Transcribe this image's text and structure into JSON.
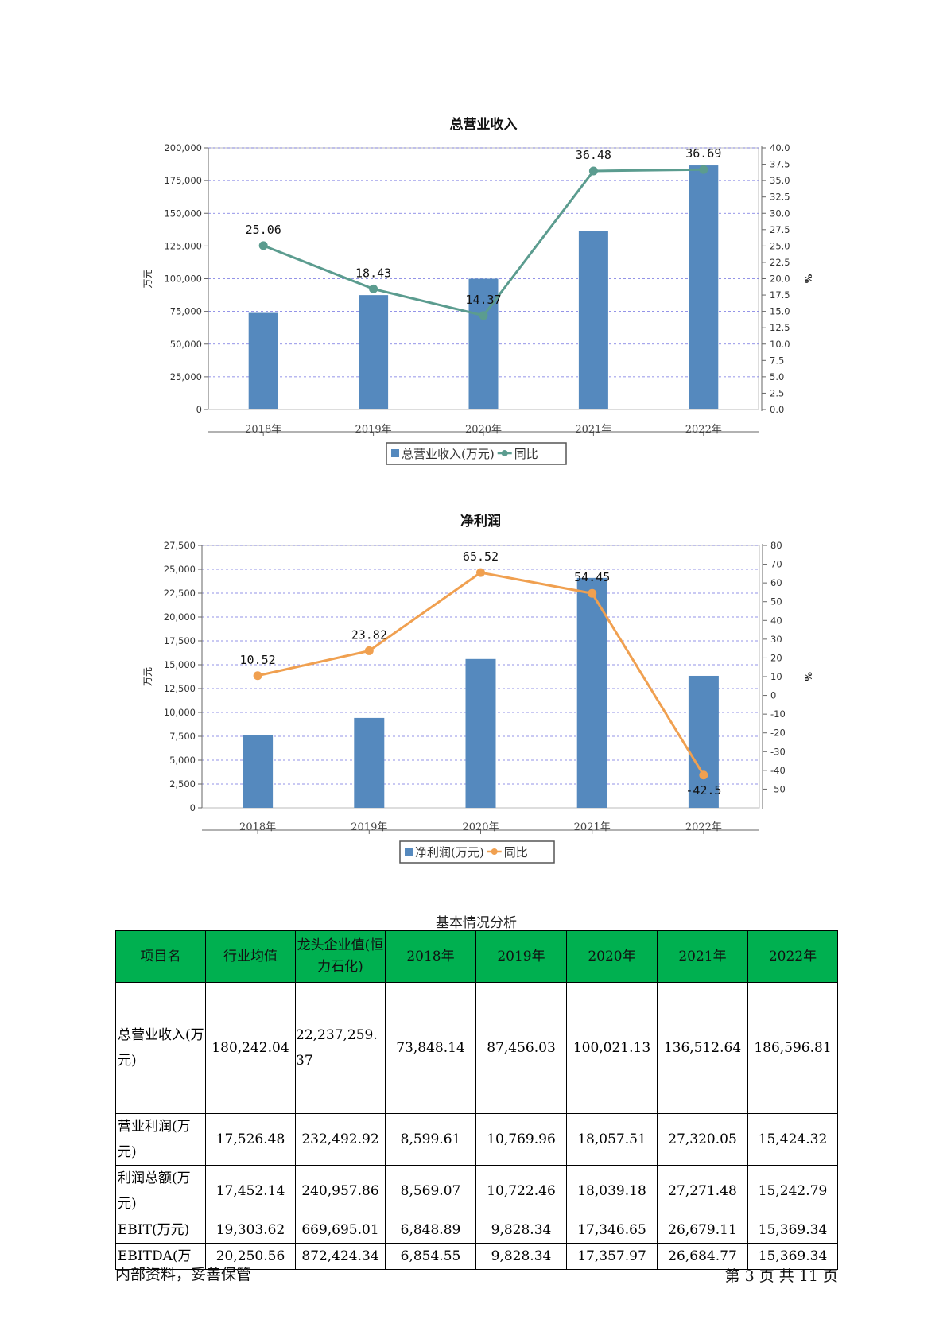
{
  "chart_data": [
    {
      "type": "bar",
      "title": "总营业收入",
      "categories": [
        "2018年",
        "2019年",
        "2020年",
        "2021年",
        "2022年"
      ],
      "ylabel": "万元",
      "y2label": "%",
      "ylim": [
        0,
        200000
      ],
      "y2lim": [
        0,
        40
      ],
      "yticks": [
        "0",
        "25,000",
        "50,000",
        "75,000",
        "100,000",
        "125,000",
        "150,000",
        "175,000",
        "200,000"
      ],
      "y2ticks": [
        "0.0",
        "2.5",
        "5.0",
        "7.5",
        "10.0",
        "12.5",
        "15.0",
        "17.5",
        "20.0",
        "22.5",
        "25.0",
        "27.5",
        "30.0",
        "32.5",
        "35.0",
        "37.5",
        "40.0"
      ],
      "series": [
        {
          "name": "总营业收入(万元)",
          "type": "bar",
          "values": [
            73848.14,
            87456.03,
            100021.13,
            136512.64,
            186596.81
          ],
          "color": "#5589be"
        },
        {
          "name": "同比",
          "type": "line",
          "axis": "right",
          "values": [
            25.06,
            18.43,
            14.37,
            36.48,
            36.69
          ],
          "labels": [
            "25.06",
            "18.43",
            "14.37",
            "36.48",
            "36.69"
          ],
          "color": "#5b9c8f"
        }
      ],
      "legend": "bottom",
      "grid": true
    },
    {
      "type": "bar",
      "title": "净利润",
      "categories": [
        "2018年",
        "2019年",
        "2020年",
        "2021年",
        "2022年"
      ],
      "ylabel": "万元",
      "y2label": "%",
      "ylim": [
        0,
        27500
      ],
      "y2lim": [
        -60,
        80
      ],
      "yticks": [
        "0",
        "2,500",
        "5,000",
        "7,500",
        "10,000",
        "12,500",
        "15,000",
        "17,500",
        "20,000",
        "22,500",
        "25,000",
        "27,500"
      ],
      "y2ticks": [
        "-50",
        "-40",
        "-30",
        "-20",
        "-10",
        "0",
        "10",
        "20",
        "30",
        "40",
        "50",
        "60",
        "70",
        "80"
      ],
      "series": [
        {
          "name": "净利润(万元)",
          "type": "bar",
          "values": [
            7612,
            9424,
            15600,
            24095,
            13835
          ],
          "color": "#5589be"
        },
        {
          "name": "同比",
          "type": "line",
          "axis": "right",
          "values": [
            10.52,
            23.82,
            65.52,
            54.45,
            -42.5
          ],
          "labels": [
            "10.52",
            "23.82",
            "65.52",
            "54.45",
            "-42.5"
          ],
          "color": "#f0a050"
        }
      ],
      "legend": "bottom",
      "grid": true
    }
  ],
  "table": {
    "caption": "基本情况分析",
    "headers": [
      "项目名",
      "行业均值",
      "龙头企业值(恒力石化)",
      "2018年",
      "2019年",
      "2020年",
      "2021年",
      "2022年"
    ],
    "rows": [
      {
        "name": "总营业收入(万元)",
        "cells": [
          "180,242.04",
          "22,237,259.37",
          "73,848.14",
          "87,456.03",
          "100,021.13",
          "136,512.64",
          "186,596.81"
        ]
      },
      {
        "name": "营业利润(万元)",
        "cells": [
          "17,526.48",
          "232,492.92",
          "8,599.61",
          "10,769.96",
          "18,057.51",
          "27,320.05",
          "15,424.32"
        ]
      },
      {
        "name": "利润总额(万元)",
        "cells": [
          "17,452.14",
          "240,957.86",
          "8,569.07",
          "10,722.46",
          "18,039.18",
          "27,271.48",
          "15,242.79"
        ]
      },
      {
        "name": "EBIT(万元)",
        "cells": [
          "19,303.62",
          "669,695.01",
          "6,848.89",
          "9,828.34",
          "17,346.65",
          "26,679.11",
          "15,369.34"
        ]
      },
      {
        "name": "EBITDA(万",
        "cells": [
          "20,250.56",
          "872,424.34",
          "6,854.55",
          "9,828.34",
          "17,357.97",
          "26,684.77",
          "15,369.34"
        ]
      }
    ]
  },
  "footer": {
    "left": "内部资料，妥善保管",
    "right": "第 3 页   共 11 页"
  }
}
